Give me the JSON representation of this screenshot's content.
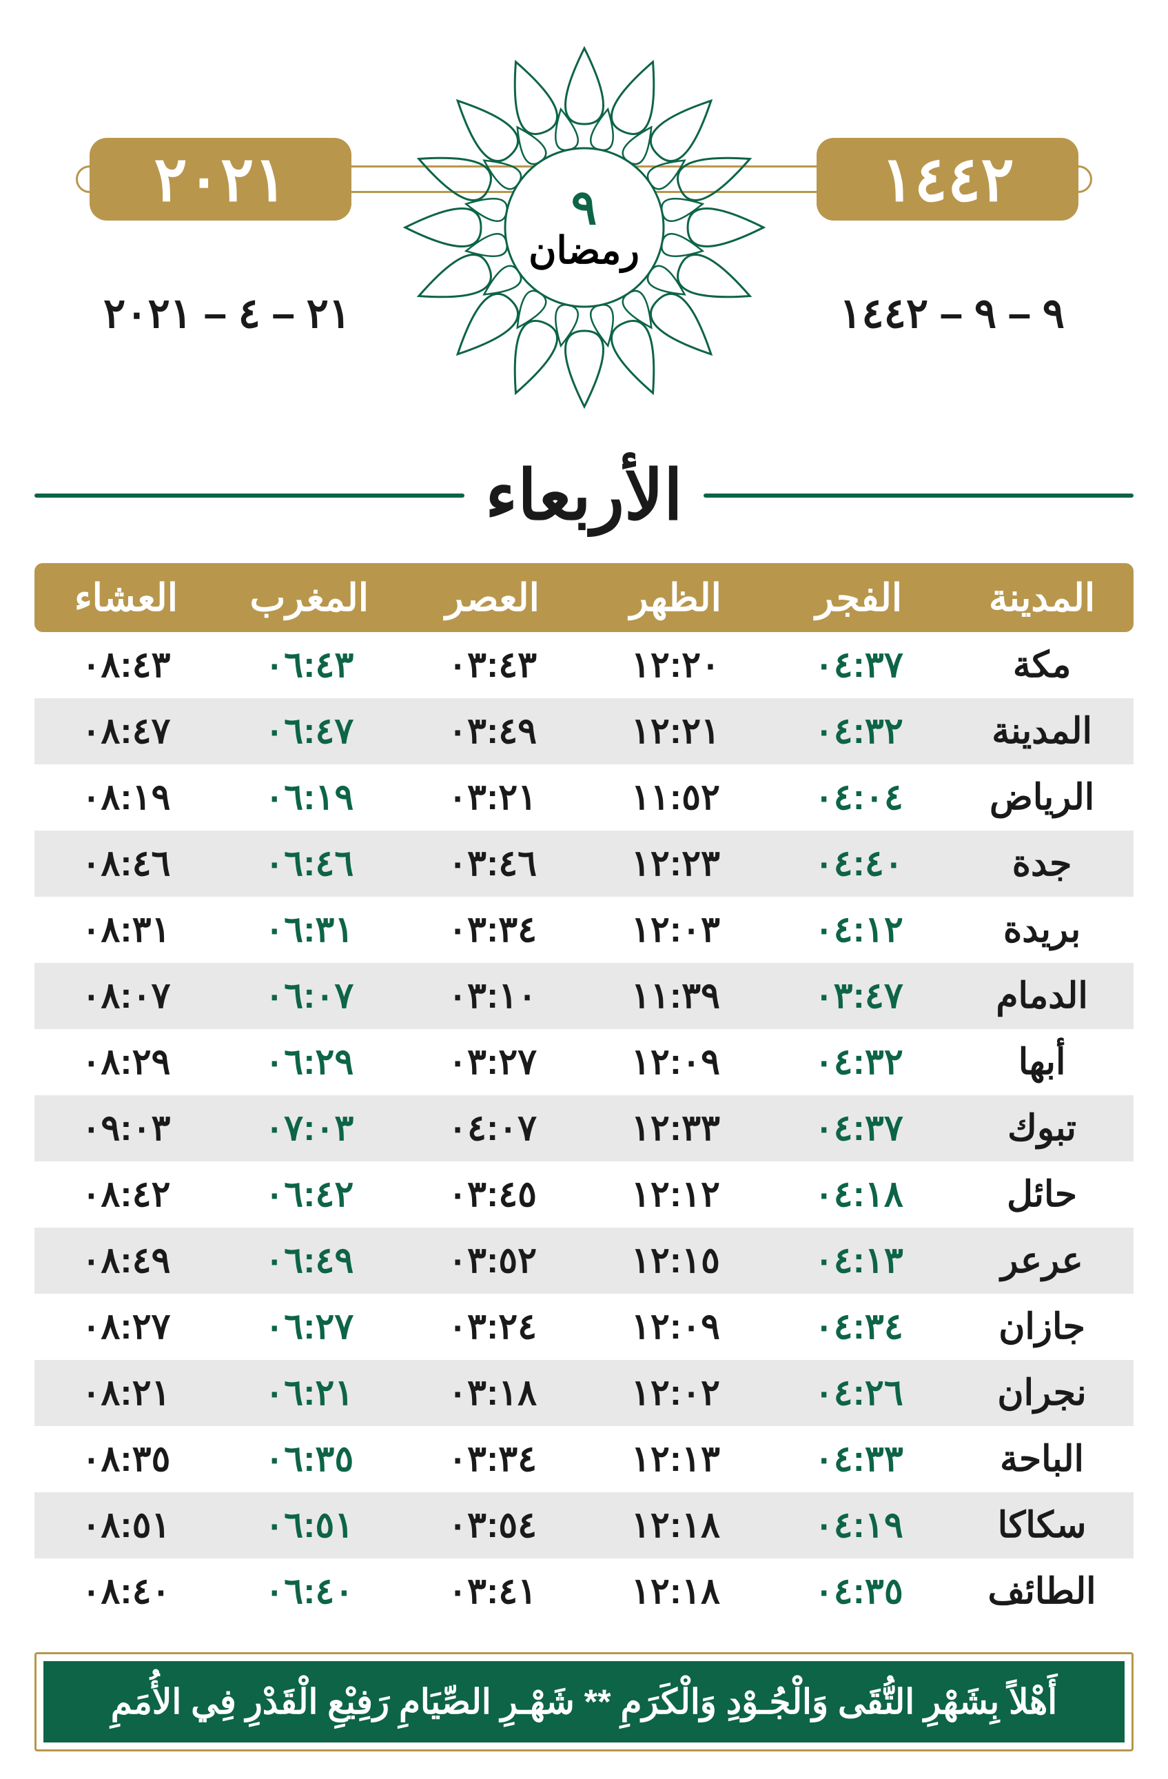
{
  "colors": {
    "gold": "#b8964c",
    "green": "#0d6447",
    "row_alt": "#e8e8e8",
    "row_base": "#ffffff",
    "text": "#1a1a1a",
    "white": "#ffffff"
  },
  "header": {
    "hijri_year_box": "١٤٤٢",
    "greg_year_box": "٢٠٢١",
    "hijri_date": "٩ – ٩ – ١٤٤٢",
    "greg_date": "٢١ – ٤ – ٢٠٢١",
    "center_day": "٩",
    "center_month": "رمضان",
    "day_name": "الأربعاء"
  },
  "table": {
    "columns": [
      "المدينة",
      "الفجر",
      "الظهر",
      "العصر",
      "المغرب",
      "العشاء"
    ],
    "green_cols": [
      1,
      4
    ],
    "rows": [
      {
        "city": "مكة",
        "times": [
          "٠٤:٣٧",
          "١٢:٢٠",
          "٠٣:٤٣",
          "٠٦:٤٣",
          "٠٨:٤٣"
        ]
      },
      {
        "city": "المدينة",
        "times": [
          "٠٤:٣٢",
          "١٢:٢١",
          "٠٣:٤٩",
          "٠٦:٤٧",
          "٠٨:٤٧"
        ]
      },
      {
        "city": "الرياض",
        "times": [
          "٠٤:٠٤",
          "١١:٥٢",
          "٠٣:٢١",
          "٠٦:١٩",
          "٠٨:١٩"
        ]
      },
      {
        "city": "جدة",
        "times": [
          "٠٤:٤٠",
          "١٢:٢٣",
          "٠٣:٤٦",
          "٠٦:٤٦",
          "٠٨:٤٦"
        ]
      },
      {
        "city": "بريدة",
        "times": [
          "٠٤:١٢",
          "١٢:٠٣",
          "٠٣:٣٤",
          "٠٦:٣١",
          "٠٨:٣١"
        ]
      },
      {
        "city": "الدمام",
        "times": [
          "٠٣:٤٧",
          "١١:٣٩",
          "٠٣:١٠",
          "٠٦:٠٧",
          "٠٨:٠٧"
        ]
      },
      {
        "city": "أبها",
        "times": [
          "٠٤:٣٢",
          "١٢:٠٩",
          "٠٣:٢٧",
          "٠٦:٢٩",
          "٠٨:٢٩"
        ]
      },
      {
        "city": "تبوك",
        "times": [
          "٠٤:٣٧",
          "١٢:٣٣",
          "٠٤:٠٧",
          "٠٧:٠٣",
          "٠٩:٠٣"
        ]
      },
      {
        "city": "حائل",
        "times": [
          "٠٤:١٨",
          "١٢:١٢",
          "٠٣:٤٥",
          "٠٦:٤٢",
          "٠٨:٤٢"
        ]
      },
      {
        "city": "عرعر",
        "times": [
          "٠٤:١٣",
          "١٢:١٥",
          "٠٣:٥٢",
          "٠٦:٤٩",
          "٠٨:٤٩"
        ]
      },
      {
        "city": "جازان",
        "times": [
          "٠٤:٣٤",
          "١٢:٠٩",
          "٠٣:٢٤",
          "٠٦:٢٧",
          "٠٨:٢٧"
        ]
      },
      {
        "city": "نجران",
        "times": [
          "٠٤:٢٦",
          "١٢:٠٢",
          "٠٣:١٨",
          "٠٦:٢١",
          "٠٨:٢١"
        ]
      },
      {
        "city": "الباحة",
        "times": [
          "٠٤:٣٣",
          "١٢:١٣",
          "٠٣:٣٤",
          "٠٦:٣٥",
          "٠٨:٣٥"
        ]
      },
      {
        "city": "سكاكا",
        "times": [
          "٠٤:١٩",
          "١٢:١٨",
          "٠٣:٥٤",
          "٠٦:٥١",
          "٠٨:٥١"
        ]
      },
      {
        "city": "الطائف",
        "times": [
          "٠٤:٣٥",
          "١٢:١٨",
          "٠٣:٤١",
          "٠٦:٤٠",
          "٠٨:٤٠"
        ]
      }
    ]
  },
  "footer": {
    "text": "أَهْلاً بِشَهْرِ التُّقَى وَالْجُـوْدِ وَالْكَرَمِ ** شَهْـرِ الصِّيَامِ رَفِيْعِ الْقَدْرِ فِي الأُمَمِ"
  }
}
